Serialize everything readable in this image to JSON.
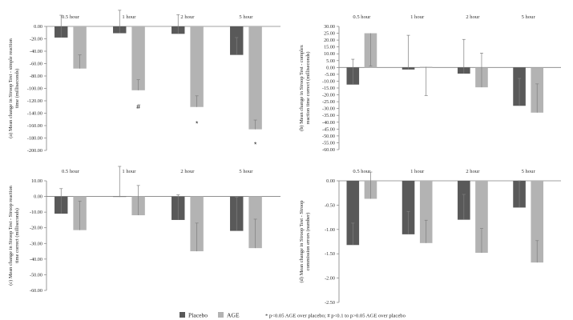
{
  "colors": {
    "placebo": "#595959",
    "age": "#b3b3b3",
    "axis": "#808080",
    "error": "#7f7f7f"
  },
  "legend": {
    "placebo_label": "Placebo",
    "age_label": "AGE",
    "note": "* p<0.05 AGE over placebo; # p<0.1 to p>0.05 AGE over placebo"
  },
  "chart_data": [
    {
      "type": "bar",
      "panel": "a",
      "ylabel": "(a) Mean change in Stroop Test - simple reaction time (milliseconds)",
      "ylabel_lines": [
        "(a) Mean change in Stroop Test - simple reaction",
        "time (milliseconds)"
      ],
      "categories": [
        "0.5 hour",
        "1 hour",
        "2 hour",
        "5 hour"
      ],
      "ylim": [
        -200,
        0
      ],
      "yticks": [
        0,
        -20,
        -40,
        -60,
        -80,
        -100,
        -120,
        -140,
        -160,
        -180,
        -200
      ],
      "tick_labels": [
        "0.00",
        "-20.00",
        "-40.00",
        "-60.00",
        "-80.00",
        "-100.00",
        "-120.00",
        "-140.00",
        "-160.00",
        "-180.00",
        "-200.00"
      ],
      "series": [
        {
          "name": "Placebo",
          "values": [
            -18,
            -11,
            -12,
            -46
          ],
          "errors": [
            36,
            37,
            31,
            28
          ]
        },
        {
          "name": "AGE",
          "values": [
            -68,
            -103,
            -130,
            -166
          ],
          "errors": [
            22,
            17,
            18,
            15
          ]
        }
      ],
      "annotations": [
        {
          "category": "1 hour",
          "series": "AGE",
          "text": "#"
        },
        {
          "category": "2 hour",
          "series": "AGE",
          "text": "*"
        },
        {
          "category": "5 hour",
          "series": "AGE",
          "text": "*"
        }
      ]
    },
    {
      "type": "bar",
      "panel": "b",
      "ylabel": "(b) Mean change in Stroop Test - complex reaction time correct (milliseconds)",
      "ylabel_lines": [
        "(b) Mean change in Stroop Test - complex",
        "reaction time correct (milliseconds)"
      ],
      "categories": [
        "0.5 hour",
        "1 hour",
        "2 hour",
        "5 hour"
      ],
      "ylim": [
        -60,
        30
      ],
      "yticks": [
        30,
        25,
        20,
        15,
        10,
        5,
        0,
        -5,
        -10,
        -15,
        -20,
        -25,
        -30,
        -35,
        -40,
        -45,
        -50,
        -55,
        -60
      ],
      "tick_labels": [
        "30.00",
        "25.00",
        "20.00",
        "15.00",
        "10.00",
        "5.00",
        "0.00",
        "-5.00",
        "-10.00",
        "-15.00",
        "-20.00",
        "-25.00",
        "-30.00",
        "-35.00",
        "-40.00",
        "-45.00",
        "-50.00",
        "-55.00",
        "-60.00"
      ],
      "series": [
        {
          "name": "Placebo",
          "values": [
            -12.5,
            -1.5,
            -4.5,
            -28
          ],
          "errors": [
            18.5,
            25,
            25,
            20
          ]
        },
        {
          "name": "AGE",
          "values": [
            25,
            0.5,
            -14.5,
            -33
          ],
          "errors": [
            24,
            21,
            25,
            21
          ]
        }
      ],
      "annotations": []
    },
    {
      "type": "bar",
      "panel": "c",
      "ylabel": "(c) Mean change in Stroop Test - Stroop reaction time correct (milliseconds)",
      "ylabel_lines": [
        "(c) Mean change in Stroop Test - Stroop reaction",
        "time correct (milliseconds)"
      ],
      "categories": [
        "0.5 hour",
        "1 hour",
        "2 hour",
        "5 hour"
      ],
      "ylim": [
        -60,
        10
      ],
      "yticks": [
        10,
        0,
        -10,
        -20,
        -30,
        -40,
        -50,
        -60
      ],
      "tick_labels": [
        "10.00",
        "0.00",
        "-10.00",
        "-20.00",
        "-30.00",
        "-40.00",
        "-50.00",
        "-60.00"
      ],
      "series": [
        {
          "name": "Placebo",
          "values": [
            -11,
            -0.3,
            -15,
            -22
          ],
          "errors": [
            16,
            19.5,
            16,
            21.5
          ]
        },
        {
          "name": "AGE",
          "values": [
            -21.5,
            -12,
            -35,
            -33
          ],
          "errors": [
            18.5,
            19,
            18,
            18.5
          ]
        }
      ],
      "annotations": []
    },
    {
      "type": "bar",
      "panel": "d",
      "ylabel": "(d) Mean change in Stroop Test - Stroop commission errors (number)",
      "ylabel_lines": [
        "(d) Mean change in Stroop Test - Stroop",
        "commission errors (number)"
      ],
      "categories": [
        "0.5 hour",
        "1 hour",
        "2 hour",
        "5 hour"
      ],
      "ylim": [
        -2.5,
        0
      ],
      "yticks": [
        0,
        -0.5,
        -1,
        -1.5,
        -2,
        -2.5
      ],
      "tick_labels": [
        "0.00",
        "-0.50",
        "-1.00",
        "-1.50",
        "-2.00",
        "-2.50"
      ],
      "series": [
        {
          "name": "Placebo",
          "values": [
            -1.32,
            -1.1,
            -0.8,
            -0.55
          ],
          "errors": [
            0.45,
            0.47,
            0.52,
            0.55
          ]
        },
        {
          "name": "AGE",
          "values": [
            -0.37,
            -1.28,
            -1.48,
            -1.68
          ],
          "errors": [
            0.55,
            0.47,
            0.5,
            0.45
          ]
        }
      ],
      "annotations": []
    }
  ]
}
